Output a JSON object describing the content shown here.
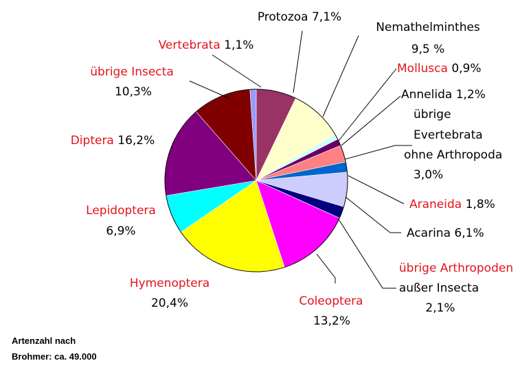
{
  "chart_data": {
    "type": "pie",
    "title": "",
    "unit": "%",
    "slices": [
      {
        "name": "Protozoa",
        "value": 7.1,
        "value_text": "7,1%",
        "color": "#993366",
        "highlight": false
      },
      {
        "name": "Nemathelminthes",
        "value": 9.5,
        "value_text": "9,5 %",
        "color": "#ffffcc",
        "highlight": false
      },
      {
        "name": "Mollusca",
        "value": 0.9,
        "value_text": "0,9%",
        "color": "#ccffff",
        "highlight": true
      },
      {
        "name": "Annelida",
        "value": 1.2,
        "value_text": "1,2%",
        "color": "#660066",
        "highlight": false
      },
      {
        "name": "übrige Evertebrata ohne Arthropoda",
        "value": 3.0,
        "value_text": "3,0%",
        "color": "#ff8080",
        "highlight": false
      },
      {
        "name": "Araneida",
        "value": 1.8,
        "value_text": "1,8%",
        "color": "#0066cc",
        "highlight": true
      },
      {
        "name": "Acarina",
        "value": 6.1,
        "value_text": "6,1%",
        "color": "#ccccff",
        "highlight": false
      },
      {
        "name": "übrige Arthropoden außer Insecta",
        "value": 2.1,
        "value_text": "2,1%",
        "color": "#000080",
        "highlight": true
      },
      {
        "name": "Coleoptera",
        "value": 13.2,
        "value_text": "13,2%",
        "color": "#ff00ff",
        "highlight": true
      },
      {
        "name": "Hymenoptera",
        "value": 20.4,
        "value_text": "20,4%",
        "color": "#ffff00",
        "highlight": true
      },
      {
        "name": "Lepidoptera",
        "value": 6.9,
        "value_text": "6,9%",
        "color": "#00ffff",
        "highlight": true
      },
      {
        "name": "Diptera",
        "value": 16.2,
        "value_text": "16,2%",
        "color": "#800080",
        "highlight": true
      },
      {
        "name": "übrige Insecta",
        "value": 10.3,
        "value_text": "10,3%",
        "color": "#800000",
        "highlight": true
      },
      {
        "name": "Vertebrata",
        "value": 1.1,
        "value_text": "1,1%",
        "color": "#9999ff",
        "highlight": true
      }
    ],
    "label_lines": [
      {
        "parts": [
          {
            "text": "Protozoa 7,1%",
            "red": false
          }
        ]
      },
      {
        "parts": [
          {
            "text": "Nemathelminthes",
            "red": false
          }
        ]
      },
      {
        "parts": [
          {
            "text": "9,5 %",
            "red": false
          }
        ]
      },
      {
        "parts": [
          {
            "text": "Mollusca",
            "red": true
          },
          {
            "text": " 0,9%",
            "red": false
          }
        ]
      },
      {
        "parts": [
          {
            "text": "Annelida 1,2%",
            "red": false
          }
        ]
      },
      {
        "parts": [
          {
            "text": "übrige",
            "red": false
          }
        ]
      },
      {
        "parts": [
          {
            "text": "Evertebrata",
            "red": false
          }
        ]
      },
      {
        "parts": [
          {
            "text": "ohne Arthropoda",
            "red": false
          }
        ]
      },
      {
        "parts": [
          {
            "text": "3,0%",
            "red": false
          }
        ]
      },
      {
        "parts": [
          {
            "text": "Araneida",
            "red": true
          },
          {
            "text": " 1,8%",
            "red": false
          }
        ]
      },
      {
        "parts": [
          {
            "text": "Acarina 6,1%",
            "red": false
          }
        ]
      },
      {
        "parts": [
          {
            "text": "übrige Arthropoden",
            "red": true
          }
        ]
      },
      {
        "parts": [
          {
            "text": "außer Insecta",
            "red": false
          }
        ]
      },
      {
        "parts": [
          {
            "text": "2,1%",
            "red": false
          }
        ]
      },
      {
        "parts": [
          {
            "text": "Coleoptera",
            "red": true
          }
        ]
      },
      {
        "parts": [
          {
            "text": "13,2%",
            "red": false
          }
        ]
      },
      {
        "parts": [
          {
            "text": "Hymenoptera",
            "red": true
          }
        ]
      },
      {
        "parts": [
          {
            "text": "20,4%",
            "red": false
          }
        ]
      },
      {
        "parts": [
          {
            "text": "Lepidoptera",
            "red": true
          }
        ]
      },
      {
        "parts": [
          {
            "text": "6,9%",
            "red": false
          }
        ]
      },
      {
        "parts": [
          {
            "text": "Diptera",
            "red": true
          },
          {
            "text": " 16,2%",
            "red": false
          }
        ]
      },
      {
        "parts": [
          {
            "text": "übrige Insecta",
            "red": true
          }
        ]
      },
      {
        "parts": [
          {
            "text": "10,3%",
            "red": false
          }
        ]
      },
      {
        "parts": [
          {
            "text": "Vertebrata",
            "red": true
          },
          {
            "text": " 1,1%",
            "red": false
          }
        ]
      }
    ],
    "legend": "none",
    "grid": false
  },
  "note": {
    "line1": "Artenzahl nach",
    "line2": "Brohmer: ca. 49.000"
  },
  "colors": {
    "highlight_text": "#e3121b",
    "text": "#000000",
    "slice_border": "#ffffff"
  }
}
